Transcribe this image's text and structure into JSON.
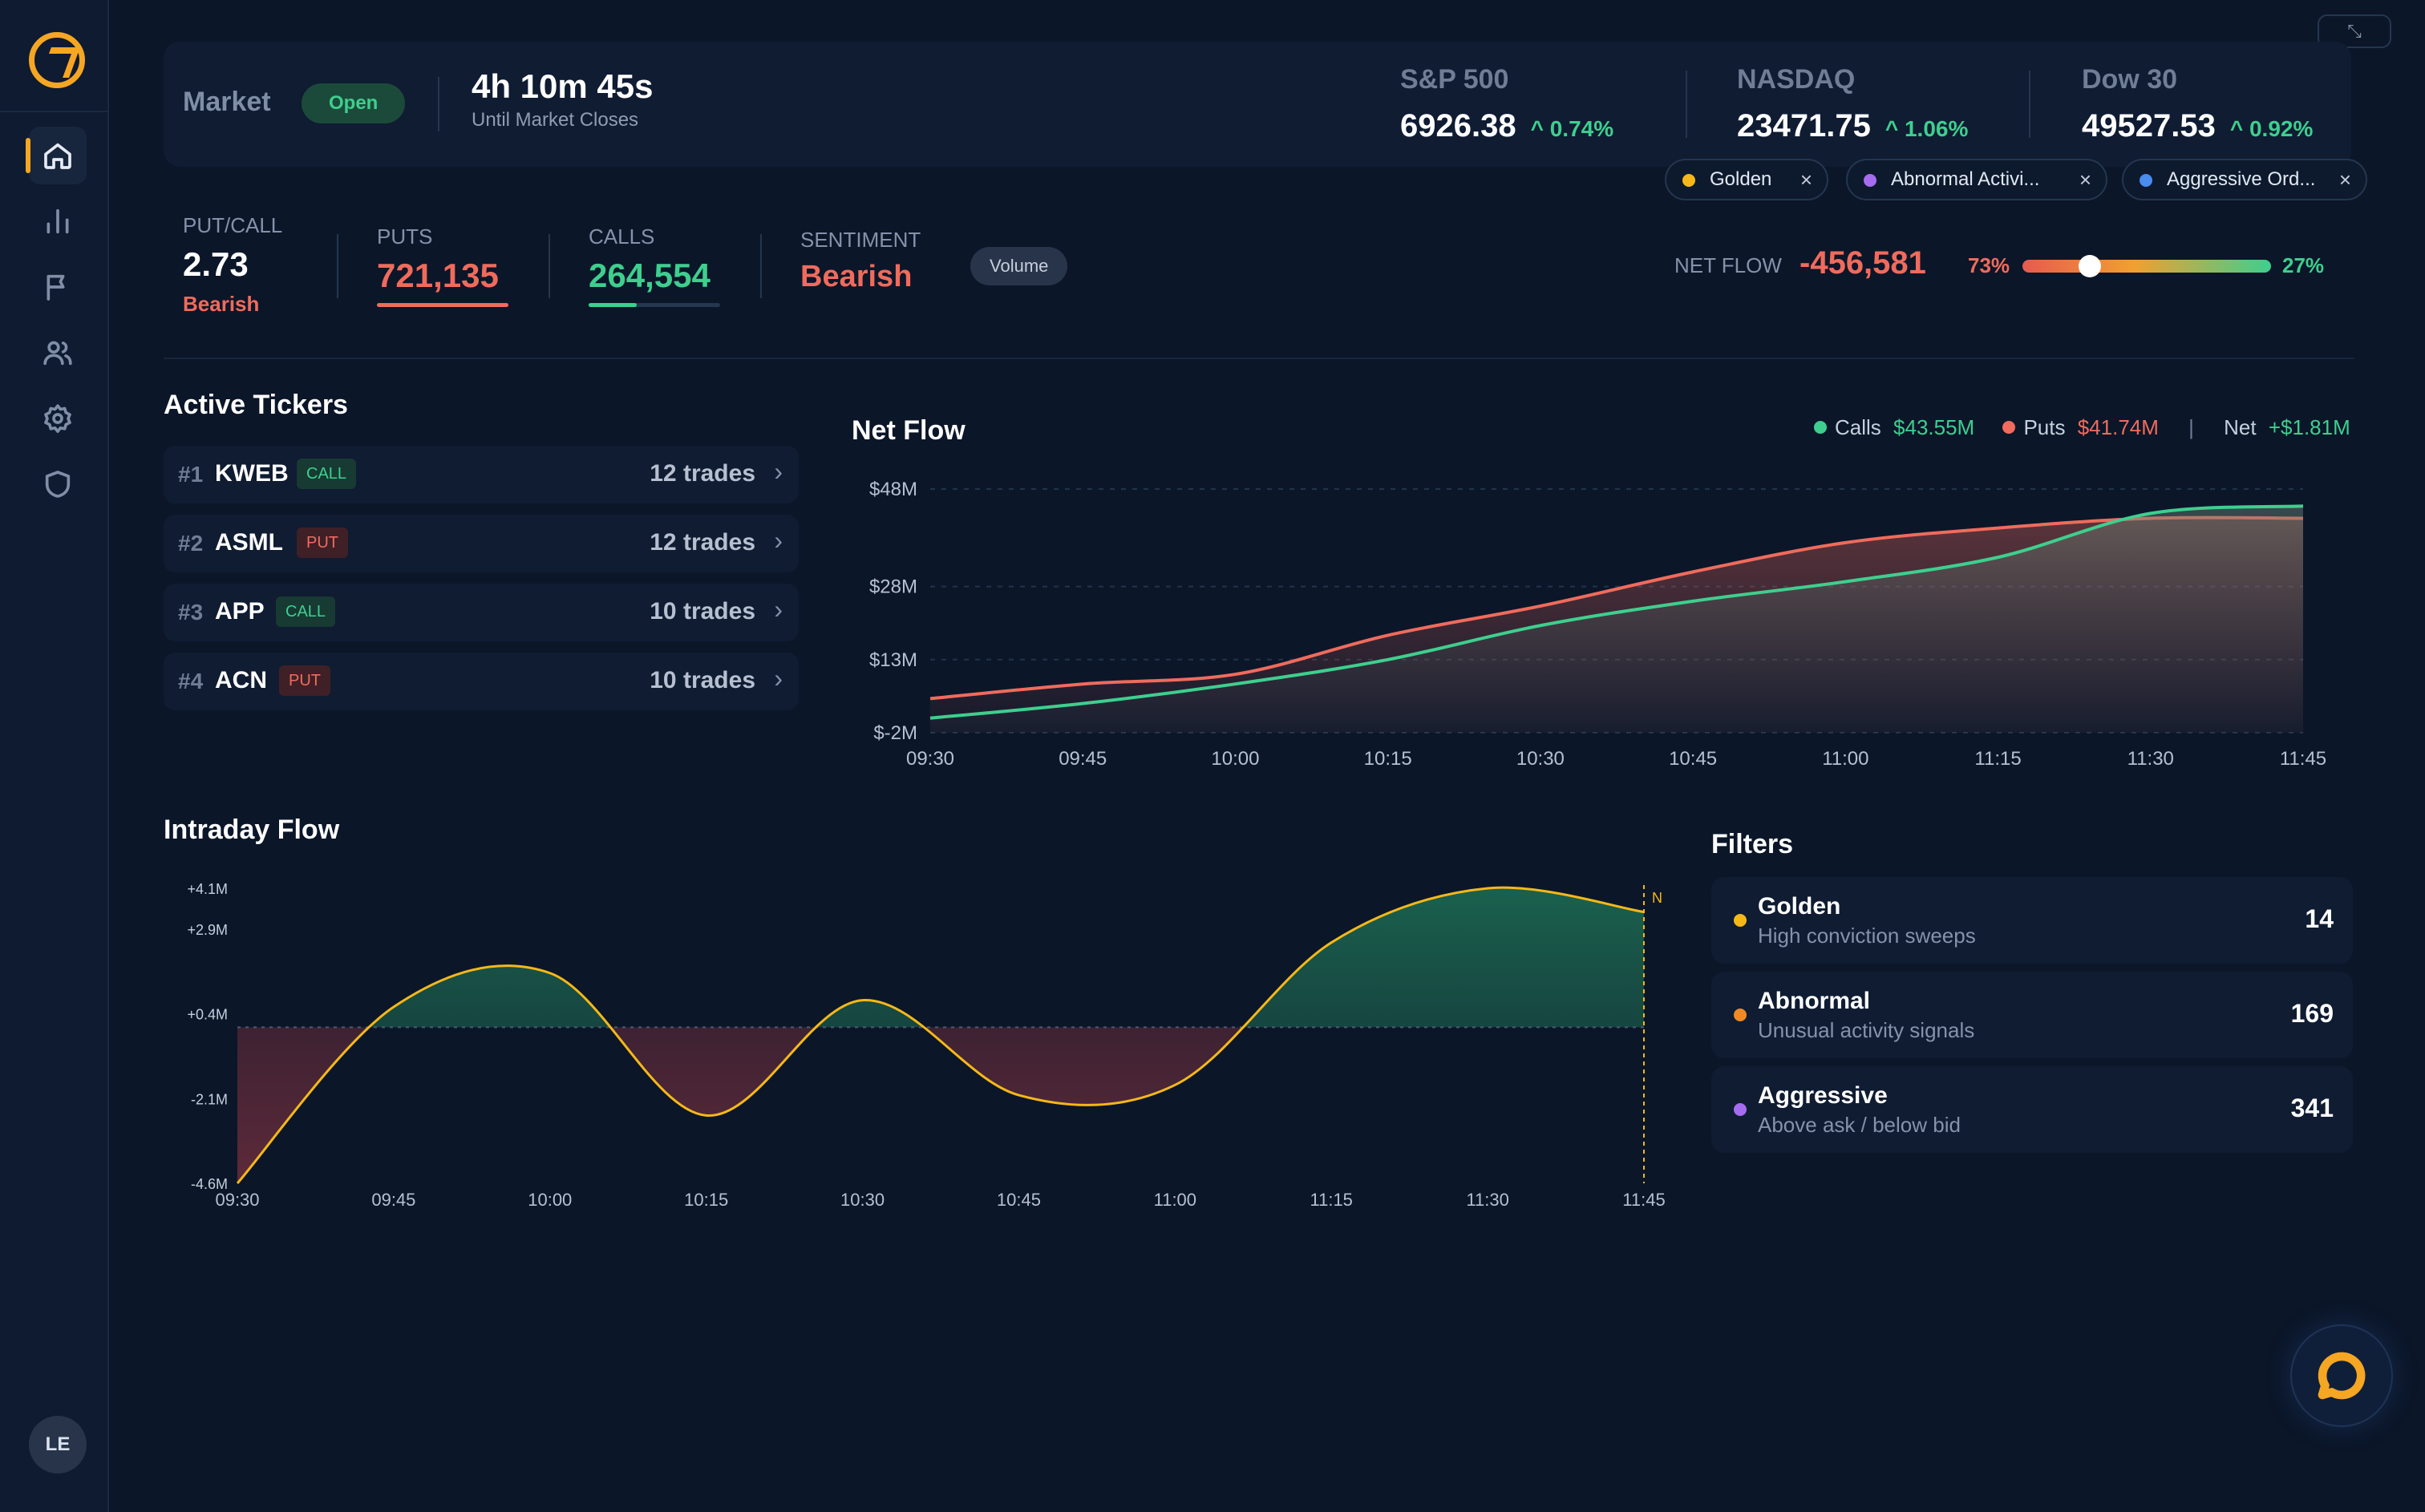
{
  "sidebar": {
    "nav": [
      {
        "name": "home-icon",
        "active": true
      },
      {
        "name": "bar-chart-icon",
        "active": false
      },
      {
        "name": "flag-icon",
        "active": false
      },
      {
        "name": "users-icon",
        "active": false
      },
      {
        "name": "gear-icon",
        "active": false
      },
      {
        "name": "shield-icon",
        "active": false
      }
    ],
    "avatar_initials": "LE"
  },
  "market": {
    "label": "Market",
    "status": "Open",
    "countdown": "4h 10m 45s",
    "countdown_sub": "Until Market Closes"
  },
  "indices": [
    {
      "name": "S&P 500",
      "value": "6926.38",
      "change": "0.74%"
    },
    {
      "name": "NASDAQ",
      "value": "23471.75",
      "change": "1.06%"
    },
    {
      "name": "Dow 30",
      "value": "49527.53",
      "change": "0.92%"
    }
  ],
  "chips": [
    {
      "label": "Golden",
      "color": "#f5b818"
    },
    {
      "label": "Abnormal Activi...",
      "color": "#a66cf0"
    },
    {
      "label": "Aggressive Ord...",
      "color": "#4a8cf0"
    }
  ],
  "stats": {
    "putcall_label": "PUT/CALL",
    "putcall_value": "2.73",
    "putcall_note": "Bearish",
    "puts_label": "PUTS",
    "puts_value": "721,135",
    "calls_label": "CALLS",
    "calls_value": "264,554",
    "sentiment_label": "SENTIMENT",
    "sentiment_value": "Bearish",
    "volume_button": "Volume",
    "netflow_label": "NET FLOW",
    "netflow_value": "-456,581",
    "bear_pct": "73%",
    "bull_pct": "27%",
    "bear_fraction": 0.73
  },
  "tickers": {
    "title": "Active Tickers",
    "items": [
      {
        "rank": "#1",
        "symbol": "KWEB",
        "type": "CALL",
        "trades": "12 trades"
      },
      {
        "rank": "#2",
        "symbol": "ASML",
        "type": "PUT",
        "trades": "12 trades"
      },
      {
        "rank": "#3",
        "symbol": "APP",
        "type": "CALL",
        "trades": "10 trades"
      },
      {
        "rank": "#4",
        "symbol": "ACN",
        "type": "PUT",
        "trades": "10 trades"
      }
    ]
  },
  "netflow_legend": {
    "calls_label": "Calls",
    "calls_value": "$43.55M",
    "puts_label": "Puts",
    "puts_value": "$41.74M",
    "sep": "|",
    "net_label": "Net",
    "net_value": "+$1.81M"
  },
  "intraday": {
    "title": "Intraday Flow",
    "marker_label": "N"
  },
  "filters": {
    "title": "Filters",
    "items": [
      {
        "title": "Golden",
        "subtitle": "High conviction sweeps",
        "count": "14",
        "color": "#f5b818"
      },
      {
        "title": "Abnormal",
        "subtitle": "Unusual activity signals",
        "count": "169",
        "color": "#f08a24"
      },
      {
        "title": "Aggressive",
        "subtitle": "Above ask / below bid",
        "count": "341",
        "color": "#a66cf0"
      }
    ]
  },
  "colors": {
    "accent": "#f5a623",
    "bull": "#3ecf8e",
    "bear": "#f06b5c",
    "bg": "#0b1629",
    "panel": "#0f1c32"
  },
  "chart_data": [
    {
      "type": "area",
      "title": "Net Flow",
      "x": [
        "09:30",
        "09:45",
        "10:00",
        "10:15",
        "10:30",
        "10:45",
        "11:00",
        "11:15",
        "11:30",
        "11:45"
      ],
      "y_ticks": [
        "$48M",
        "$28M",
        "$13M",
        "$-2M"
      ],
      "y_tick_values": [
        48,
        28,
        13,
        -2
      ],
      "ylim": [
        -2,
        48
      ],
      "series": [
        {
          "name": "Calls",
          "color": "#3ecf8e",
          "values": [
            1,
            4,
            8,
            13,
            20,
            25,
            29,
            34,
            43,
            44.5
          ]
        },
        {
          "name": "Puts",
          "color": "#f06b5c",
          "values": [
            5,
            8,
            10,
            18,
            24,
            31,
            37,
            40,
            42,
            42
          ]
        }
      ],
      "grid": true
    },
    {
      "type": "area",
      "title": "Intraday Flow",
      "x": [
        "09:30",
        "09:45",
        "10:00",
        "10:15",
        "10:30",
        "10:45",
        "11:00",
        "11:15",
        "11:30",
        "11:45"
      ],
      "y_ticks": [
        "+4.1M",
        "+2.9M",
        "+0.4M",
        "-2.1M",
        "-4.6M"
      ],
      "y_tick_values": [
        4.1,
        2.9,
        0.4,
        -2.1,
        -4.6
      ],
      "ylim": [
        -4.6,
        4.1
      ],
      "baseline": 0,
      "series": [
        {
          "name": "",
          "color": "#f5b818",
          "values": [
            -4.6,
            0.6,
            1.6,
            -2.6,
            0.8,
            -2.0,
            -1.7,
            2.5,
            4.1,
            3.4
          ]
        }
      ],
      "grid": false
    }
  ]
}
